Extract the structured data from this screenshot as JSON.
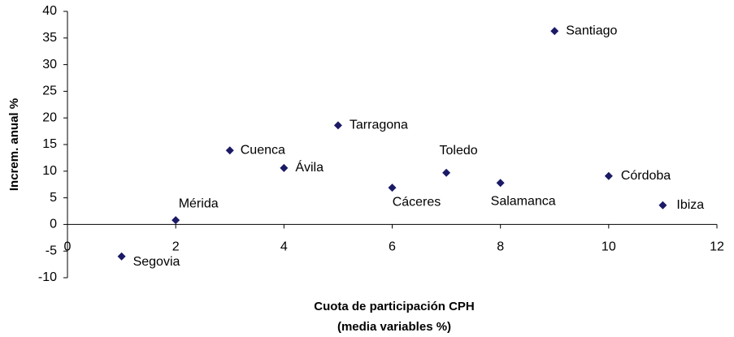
{
  "chart_data": {
    "type": "scatter",
    "x_label": [
      "Cuota de participación CPH",
      "(media variables %)"
    ],
    "y_label": "Increm. anual %",
    "color": "#1a1a66",
    "labels": [
      "Segovia",
      "Mérida",
      "Cuenca",
      "Ávila",
      "Tarragona",
      "Cáceres",
      "Toledo",
      "Salamanca",
      "Santiago",
      "Córdoba",
      "Ibiza"
    ],
    "x": [
      1,
      2,
      3,
      4,
      5,
      6,
      7,
      8,
      9,
      10,
      11
    ],
    "values": [
      -6.0,
      0.8,
      13.9,
      10.6,
      18.6,
      6.9,
      9.7,
      7.8,
      36.3,
      9.1,
      3.6
    ],
    "xlim": [
      0,
      12
    ],
    "xticks": [
      0,
      2,
      4,
      6,
      8,
      10,
      12
    ],
    "ylim": [
      -10,
      40
    ],
    "yticks": [
      -10,
      -5,
      0,
      5,
      10,
      15,
      20,
      25,
      30,
      35,
      40
    ],
    "grid": false
  }
}
